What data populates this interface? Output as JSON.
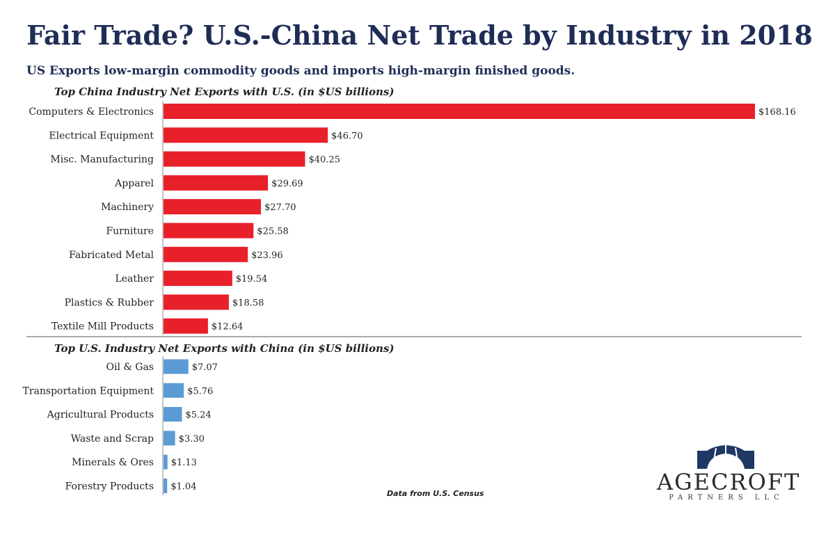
{
  "title": "Fair Trade?  U.S.-China Net Trade by Industry in 2018",
  "subtitle": "US Exports low-margin commodity goods and imports high-margin finished goods.",
  "source_note": "Data from U.S. Census",
  "logo": {
    "name": "AGECROFT",
    "sub": "PARTNERS LLC"
  },
  "chart_data": [
    {
      "type": "bar",
      "orientation": "horizontal",
      "title": "Top China Industry Net Exports with U.S. (in $US billions)",
      "color": "#e8202a",
      "categories": [
        "Computers & Electronics",
        "Electrical Equipment",
        "Misc. Manufacturing",
        "Apparel",
        "Machinery",
        "Furniture",
        "Fabricated Metal",
        "Leather",
        "Plastics & Rubber",
        "Textile Mill Products"
      ],
      "values": [
        168.16,
        46.7,
        40.25,
        29.69,
        27.7,
        25.58,
        23.96,
        19.54,
        18.58,
        12.64
      ],
      "labels": [
        "$168.16",
        "$46.70",
        "$40.25",
        "$29.69",
        "$27.70",
        "$25.58",
        "$23.96",
        "$19.54",
        "$18.58",
        "$12.64"
      ]
    },
    {
      "type": "bar",
      "orientation": "horizontal",
      "title": "Top U.S. Industry Net Exports with China (in $US billions)",
      "color": "#5b9bd5",
      "categories": [
        "Oil & Gas",
        "Transportation Equipment",
        "Agricultural Products",
        "Waste and Scrap",
        "Minerals & Ores",
        "Forestry Products"
      ],
      "values": [
        7.07,
        5.76,
        5.24,
        3.3,
        1.13,
        1.04
      ],
      "labels": [
        "$7.07",
        "$5.76",
        "$5.24",
        "$3.30",
        "$1.13",
        "$1.04"
      ]
    }
  ]
}
